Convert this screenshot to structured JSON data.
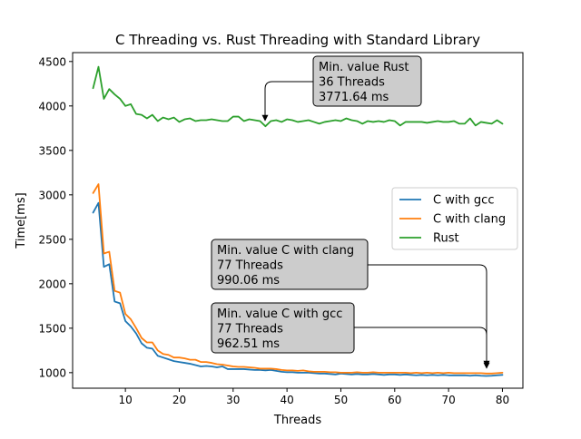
{
  "chart_data": {
    "type": "line",
    "title": "C Threading vs. Rust Threading with Standard Library",
    "xlabel": "Threads",
    "ylabel": "Time[ms]",
    "xlim": [
      0.2,
      83.8
    ],
    "ylim": [
      825,
      4600
    ],
    "xticks": [
      10,
      20,
      30,
      40,
      50,
      60,
      70,
      80
    ],
    "yticks": [
      1000,
      1500,
      2000,
      2500,
      3000,
      3500,
      4000,
      4500
    ],
    "grid": false,
    "legend_position": "center-right",
    "x": [
      4,
      5,
      6,
      7,
      8,
      9,
      10,
      11,
      12,
      13,
      14,
      15,
      16,
      17,
      18,
      19,
      20,
      21,
      22,
      23,
      24,
      25,
      26,
      27,
      28,
      29,
      30,
      31,
      32,
      33,
      34,
      35,
      36,
      37,
      38,
      39,
      40,
      41,
      42,
      43,
      44,
      45,
      46,
      47,
      48,
      49,
      50,
      51,
      52,
      53,
      54,
      55,
      56,
      57,
      58,
      59,
      60,
      61,
      62,
      63,
      64,
      65,
      66,
      67,
      68,
      69,
      70,
      71,
      72,
      73,
      74,
      75,
      76,
      77,
      78,
      79,
      80
    ],
    "series": [
      {
        "name": "C with gcc",
        "color": "#1f77b4",
        "values": [
          2800,
          2910,
          2190,
          2220,
          1800,
          1780,
          1580,
          1520,
          1440,
          1330,
          1280,
          1270,
          1190,
          1170,
          1150,
          1130,
          1120,
          1110,
          1100,
          1085,
          1070,
          1075,
          1070,
          1060,
          1070,
          1040,
          1040,
          1040,
          1040,
          1035,
          1030,
          1030,
          1025,
          1030,
          1020,
          1010,
          1005,
          1005,
          1000,
          1000,
          1000,
          995,
          990,
          990,
          985,
          980,
          990,
          985,
          980,
          985,
          980,
          980,
          985,
          980,
          975,
          980,
          980,
          975,
          980,
          975,
          970,
          975,
          970,
          975,
          970,
          975,
          970,
          970,
          970,
          970,
          965,
          970,
          965,
          962.51,
          965,
          970,
          975
        ]
      },
      {
        "name": "C with clang",
        "color": "#ff7f0e",
        "values": [
          3020,
          3120,
          2340,
          2360,
          1920,
          1900,
          1660,
          1600,
          1500,
          1390,
          1340,
          1340,
          1250,
          1210,
          1200,
          1170,
          1170,
          1160,
          1145,
          1145,
          1120,
          1120,
          1110,
          1095,
          1090,
          1080,
          1070,
          1065,
          1065,
          1060,
          1055,
          1045,
          1045,
          1045,
          1040,
          1030,
          1025,
          1025,
          1020,
          1025,
          1015,
          1010,
          1010,
          1010,
          1005,
          1005,
          1000,
          1000,
          1000,
          1005,
          1000,
          1000,
          1005,
          1000,
          1000,
          1000,
          1000,
          1000,
          1000,
          995,
          1000,
          995,
          1000,
          995,
          1000,
          995,
          1000,
          995,
          995,
          995,
          995,
          995,
          995,
          990.06,
          990,
          995,
          1000
        ]
      },
      {
        "name": "Rust",
        "color": "#2ca02c",
        "values": [
          4200,
          4440,
          4080,
          4190,
          4130,
          4080,
          4000,
          4020,
          3910,
          3900,
          3860,
          3900,
          3830,
          3870,
          3850,
          3870,
          3820,
          3850,
          3860,
          3830,
          3840,
          3840,
          3850,
          3840,
          3830,
          3830,
          3880,
          3880,
          3830,
          3850,
          3840,
          3830,
          3771.64,
          3830,
          3840,
          3820,
          3850,
          3840,
          3820,
          3830,
          3840,
          3820,
          3800,
          3820,
          3830,
          3840,
          3830,
          3860,
          3840,
          3830,
          3800,
          3830,
          3820,
          3830,
          3820,
          3840,
          3830,
          3780,
          3820,
          3820,
          3820,
          3820,
          3810,
          3820,
          3830,
          3820,
          3820,
          3830,
          3800,
          3800,
          3860,
          3780,
          3820,
          3810,
          3800,
          3840,
          3800
        ]
      }
    ],
    "annotations": [
      {
        "lines": [
          "Min. value Rust",
          "36 Threads",
          "3771.64 ms"
        ],
        "point": {
          "x": 36,
          "y": 3771.64
        }
      },
      {
        "lines": [
          "Min. value C with clang",
          "77 Threads",
          "990.06 ms"
        ],
        "point": {
          "x": 77,
          "y": 990.06
        }
      },
      {
        "lines": [
          "Min. value C with gcc",
          "77 Threads",
          "962.51 ms"
        ],
        "point": {
          "x": 77,
          "y": 962.51
        }
      }
    ]
  }
}
